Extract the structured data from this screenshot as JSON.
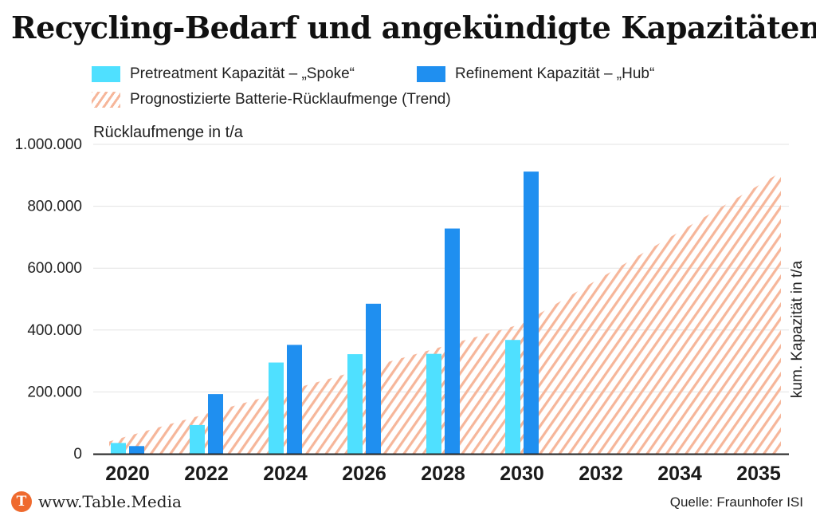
{
  "chart_data": {
    "type": "bar",
    "title": "Recycling-Bedarf und angekündigte Kapazitäten",
    "ylabel": "Rücklaufmenge in t/a",
    "y2label": "kum. Kapazität in t/a",
    "ylim": [
      0,
      1000000
    ],
    "yticks": [
      "0",
      "200.000",
      "400.000",
      "600.000",
      "800.000",
      "1.000.000"
    ],
    "grid": true,
    "legend_position": "top",
    "categories": [
      "2020",
      "2022",
      "2024",
      "2026",
      "2028",
      "2030",
      "2032",
      "2034",
      "2035"
    ],
    "series": [
      {
        "name": "Pretreatment Kapazität – „Spoke“",
        "type": "bar",
        "color": "#4fe0ff",
        "values": [
          35000,
          93000,
          295000,
          322000,
          323000,
          368000,
          null,
          null,
          null
        ]
      },
      {
        "name": "Refinement Kapazität – „Hub“",
        "type": "bar",
        "color": "#1f8ff0",
        "values": [
          25000,
          193000,
          352000,
          485000,
          728000,
          912000,
          null,
          null,
          null
        ]
      },
      {
        "name": "Prognostizierte Batterie-Rücklaufmenge (Trend)",
        "type": "area",
        "color": "#f6b69a",
        "pattern": "diagonal-hatch",
        "x": [
          "2020",
          "2030",
          "2035"
        ],
        "values": [
          40000,
          420000,
          910000
        ]
      }
    ]
  },
  "footer": {
    "brand_logo_letter": "T",
    "brand": "www.Table.Media",
    "source": "Quelle: Fraunhofer ISI"
  }
}
